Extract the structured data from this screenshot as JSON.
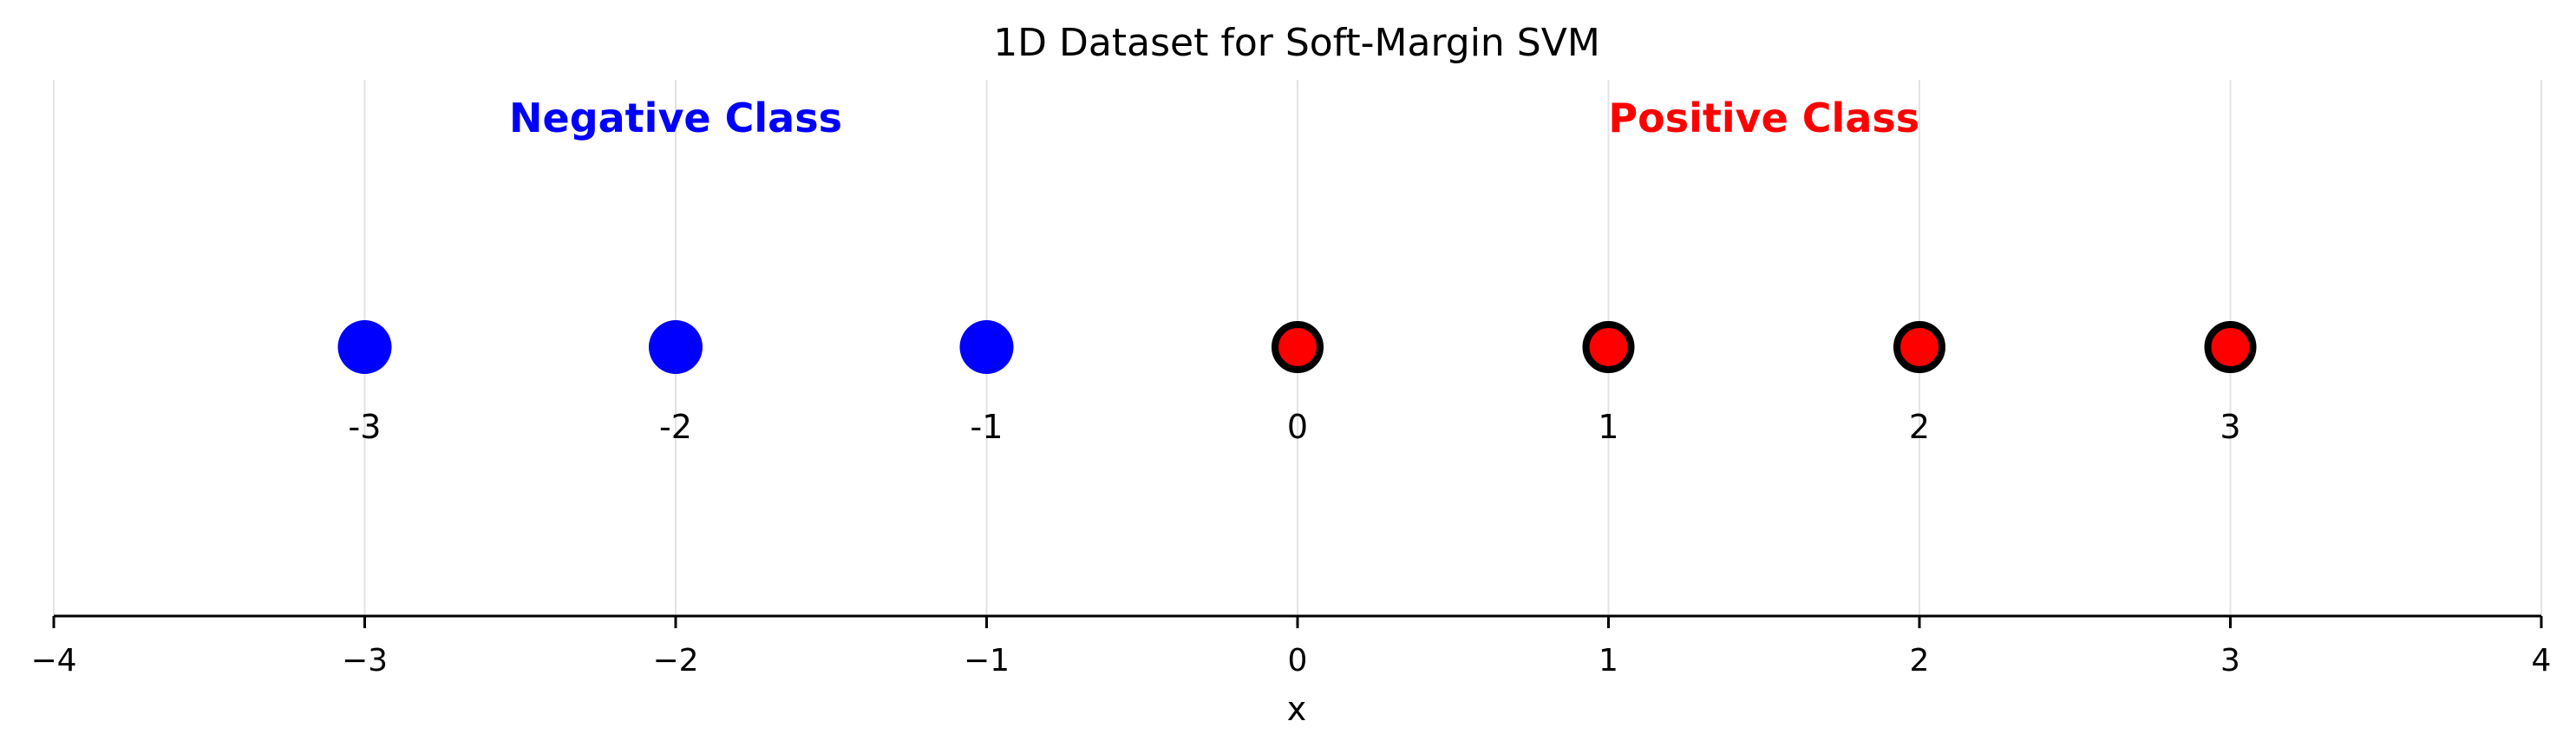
{
  "chart_data": {
    "type": "scatter",
    "title": "1D Dataset for Soft-Margin SVM",
    "xlabel": "x",
    "ylabel": "",
    "xlim": [
      -4,
      4
    ],
    "xticks": [
      -4,
      -3,
      -2,
      -1,
      0,
      1,
      2,
      3,
      4
    ],
    "xtick_labels": [
      "−4",
      "−3",
      "−2",
      "−1",
      "0",
      "1",
      "2",
      "3",
      "4"
    ],
    "grid": "vertical",
    "series": [
      {
        "name": "Negative Class",
        "x": [
          -3,
          -2,
          -1
        ],
        "labels": [
          "-3",
          "-2",
          "-1"
        ],
        "color": "#0000ff",
        "edge_color": "#0000ff"
      },
      {
        "name": "Positive Class",
        "x": [
          0,
          1,
          2,
          3
        ],
        "labels": [
          "0",
          "1",
          "2",
          "3"
        ],
        "color": "#ff0000",
        "edge_color": "#000000"
      }
    ],
    "annotations": [
      {
        "text": "Negative Class",
        "x": -2,
        "color": "#0000ff"
      },
      {
        "text": "Positive Class",
        "x": 1.5,
        "color": "#ff0000"
      }
    ]
  }
}
